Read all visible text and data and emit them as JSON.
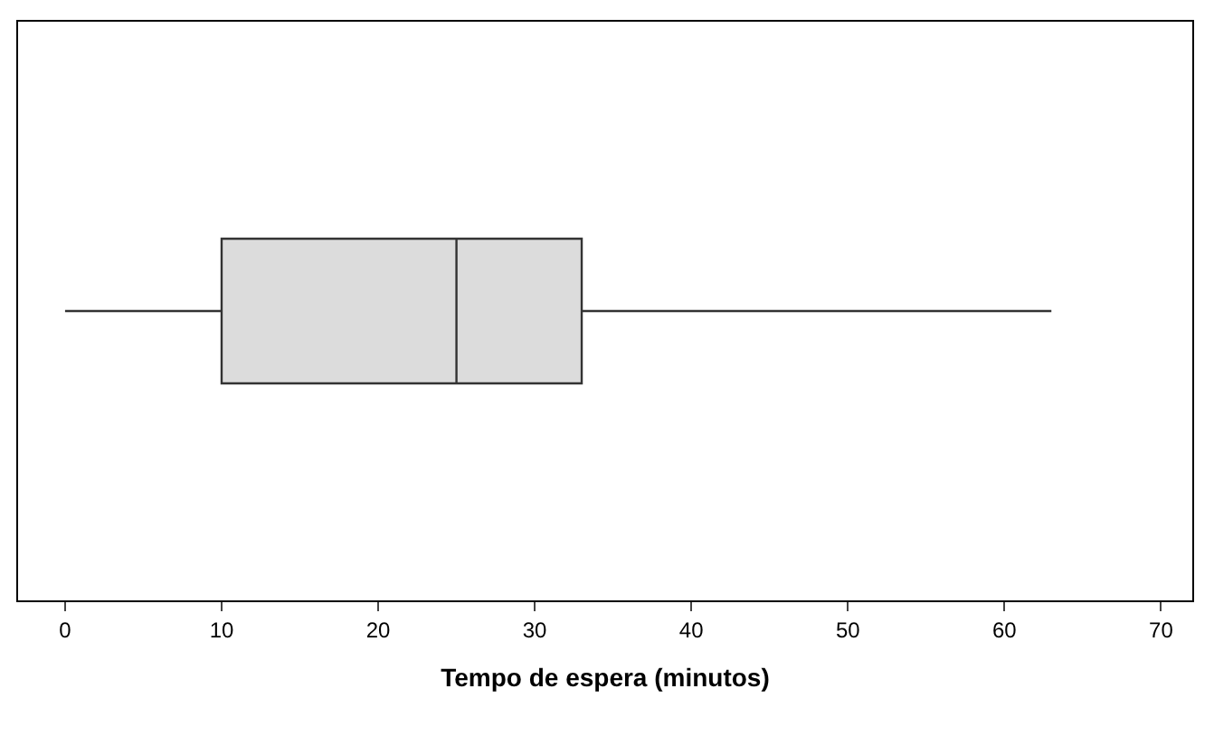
{
  "chart_data": {
    "type": "box",
    "orientation": "horizontal",
    "categories": [
      null
    ],
    "boxes": [
      {
        "low": 0,
        "q1": 10,
        "median": 25,
        "q3": 33,
        "high": 63
      }
    ],
    "color": "#dcdcdc",
    "xlabel": "Tempo de espera (minutos)",
    "xlim": [
      -3,
      72
    ],
    "xticks": [
      0,
      10,
      20,
      30,
      40,
      50,
      60,
      70
    ],
    "tick_labels": "x"
  }
}
